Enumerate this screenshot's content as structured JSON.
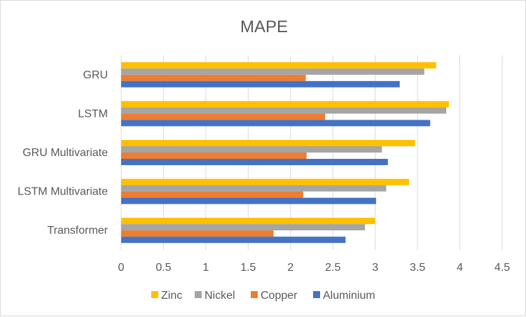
{
  "chart_data": {
    "type": "bar",
    "orientation": "horizontal",
    "title": "MAPE",
    "categories": [
      "GRU",
      "LSTM",
      "GRU Multivariate",
      "LSTM Multivariate",
      "Transformer"
    ],
    "series": [
      {
        "name": "Zinc",
        "color": "#FFC000",
        "values": [
          3.72,
          3.87,
          3.47,
          3.4,
          3.0
        ]
      },
      {
        "name": "Nickel",
        "color": "#A5A5A5",
        "values": [
          3.58,
          3.84,
          3.08,
          3.13,
          2.88
        ]
      },
      {
        "name": "Copper",
        "color": "#ED7D31",
        "values": [
          2.18,
          2.41,
          2.19,
          2.15,
          1.8
        ]
      },
      {
        "name": "Aluminium",
        "color": "#4472C4",
        "values": [
          3.29,
          3.65,
          3.15,
          3.01,
          2.65
        ]
      }
    ],
    "xlim": [
      0,
      4.5
    ],
    "xticks": [
      "0",
      "0.5",
      "1",
      "1.5",
      "2",
      "2.5",
      "3",
      "3.5",
      "4",
      "4.5"
    ],
    "grid": true,
    "legend_position": "bottom"
  }
}
